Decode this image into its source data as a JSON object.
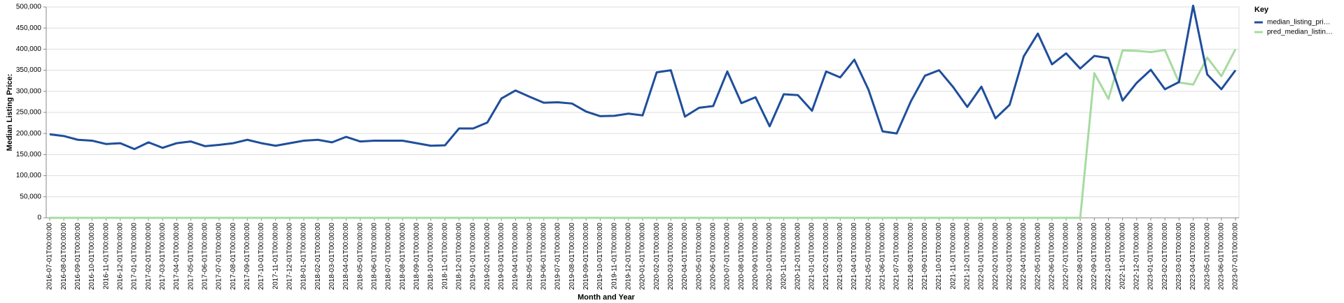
{
  "chart_data": {
    "type": "line",
    "x_label": "Month and Year",
    "y_label": "Median Listing Price:",
    "legend_title": "Key",
    "categories": [
      "2016-07-01T00:00:00",
      "2016-08-01T00:00:00",
      "2016-09-01T00:00:00",
      "2016-10-01T00:00:00",
      "2016-11-01T00:00:00",
      "2016-12-01T00:00:00",
      "2017-01-01T00:00:00",
      "2017-02-01T00:00:00",
      "2017-03-01T00:00:00",
      "2017-04-01T00:00:00",
      "2017-05-01T00:00:00",
      "2017-06-01T00:00:00",
      "2017-07-01T00:00:00",
      "2017-08-01T00:00:00",
      "2017-09-01T00:00:00",
      "2017-10-01T00:00:00",
      "2017-11-01T00:00:00",
      "2017-12-01T00:00:00",
      "2018-01-01T00:00:00",
      "2018-02-01T00:00:00",
      "2018-03-01T00:00:00",
      "2018-04-01T00:00:00",
      "2018-05-01T00:00:00",
      "2018-06-01T00:00:00",
      "2018-07-01T00:00:00",
      "2018-08-01T00:00:00",
      "2018-09-01T00:00:00",
      "2018-10-01T00:00:00",
      "2018-11-01T00:00:00",
      "2018-12-01T00:00:00",
      "2019-01-01T00:00:00",
      "2019-02-01T00:00:00",
      "2019-03-01T00:00:00",
      "2019-04-01T00:00:00",
      "2019-05-01T00:00:00",
      "2019-06-01T00:00:00",
      "2019-07-01T00:00:00",
      "2019-08-01T00:00:00",
      "2019-09-01T00:00:00",
      "2019-10-01T00:00:00",
      "2019-11-01T00:00:00",
      "2019-12-01T00:00:00",
      "2020-01-01T00:00:00",
      "2020-02-01T00:00:00",
      "2020-03-01T00:00:00",
      "2020-04-01T00:00:00",
      "2020-05-01T00:00:00",
      "2020-06-01T00:00:00",
      "2020-07-01T00:00:00",
      "2020-08-01T00:00:00",
      "2020-09-01T00:00:00",
      "2020-10-01T00:00:00",
      "2020-11-01T00:00:00",
      "2020-12-01T00:00:00",
      "2021-01-01T00:00:00",
      "2021-02-01T00:00:00",
      "2021-03-01T00:00:00",
      "2021-04-01T00:00:00",
      "2021-05-01T00:00:00",
      "2021-06-01T00:00:00",
      "2021-07-01T00:00:00",
      "2021-08-01T00:00:00",
      "2021-09-01T00:00:00",
      "2021-10-01T00:00:00",
      "2021-11-01T00:00:00",
      "2021-12-01T00:00:00",
      "2022-01-01T00:00:00",
      "2022-02-01T00:00:00",
      "2022-03-01T00:00:00",
      "2022-04-01T00:00:00",
      "2022-05-01T00:00:00",
      "2022-06-01T00:00:00",
      "2022-07-01T00:00:00",
      "2022-08-01T00:00:00",
      "2022-09-01T00:00:00",
      "2022-10-01T00:00:00",
      "2022-11-01T00:00:00",
      "2022-12-01T00:00:00",
      "2023-01-01T00:00:00",
      "2023-02-01T00:00:00",
      "2023-03-01T00:00:00",
      "2023-04-01T00:00:00",
      "2023-05-01T00:00:00",
      "2023-06-01T00:00:00",
      "2023-07-01T00:00:00"
    ],
    "series": [
      {
        "name": "median_listing_pri…",
        "color": "#1f4e9c",
        "values": [
          198000,
          194000,
          185000,
          183000,
          175000,
          177000,
          163000,
          179000,
          166000,
          177000,
          181000,
          170000,
          173000,
          177000,
          185000,
          177000,
          171000,
          177000,
          183000,
          185000,
          179000,
          192000,
          181000,
          183000,
          183000,
          183000,
          177000,
          171000,
          172000,
          212000,
          212000,
          226000,
          283000,
          302000,
          287000,
          273000,
          274000,
          271000,
          252000,
          241000,
          242000,
          247000,
          243000,
          345000,
          350000,
          240000,
          261000,
          265000,
          347000,
          272000,
          286000,
          217000,
          293000,
          291000,
          254000,
          347000,
          333000,
          375000,
          304000,
          205000,
          200000,
          276000,
          337000,
          350000,
          310000,
          263000,
          311000,
          236000,
          268000,
          383000,
          437000,
          364000,
          390000,
          354000,
          384000,
          379000,
          278000,
          320000,
          351000,
          305000,
          322000,
          503000,
          340000,
          305000,
          350000
        ]
      },
      {
        "name": "pred_median_listin…",
        "color": "#a6dba0",
        "values": [
          0,
          0,
          0,
          0,
          0,
          0,
          0,
          0,
          0,
          0,
          0,
          0,
          0,
          0,
          0,
          0,
          0,
          0,
          0,
          0,
          0,
          0,
          0,
          0,
          0,
          0,
          0,
          0,
          0,
          0,
          0,
          0,
          0,
          0,
          0,
          0,
          0,
          0,
          0,
          0,
          0,
          0,
          0,
          0,
          0,
          0,
          0,
          0,
          0,
          0,
          0,
          0,
          0,
          0,
          0,
          0,
          0,
          0,
          0,
          0,
          0,
          0,
          0,
          0,
          0,
          0,
          0,
          0,
          0,
          0,
          0,
          0,
          0,
          0,
          343000,
          282000,
          397000,
          396000,
          393000,
          398000,
          321000,
          316000,
          380000,
          336000,
          400000
        ]
      }
    ],
    "ylim": [
      0,
      500000
    ],
    "yticks": [
      0,
      {
        "value": 50000,
        "label": "50,000"
      },
      {
        "value": 100000,
        "label": "100,000"
      },
      {
        "value": 150000,
        "label": "150,000"
      },
      {
        "value": 200000,
        "label": "200,000"
      },
      {
        "value": 250000,
        "label": "250,000"
      },
      {
        "value": 300000,
        "label": "300,000"
      },
      {
        "value": 350000,
        "label": "350,000"
      },
      {
        "value": 400000,
        "label": "400,000"
      },
      {
        "value": 450000,
        "label": "450,000"
      },
      {
        "value": 500000,
        "label": "500,000"
      }
    ],
    "grid": true
  }
}
